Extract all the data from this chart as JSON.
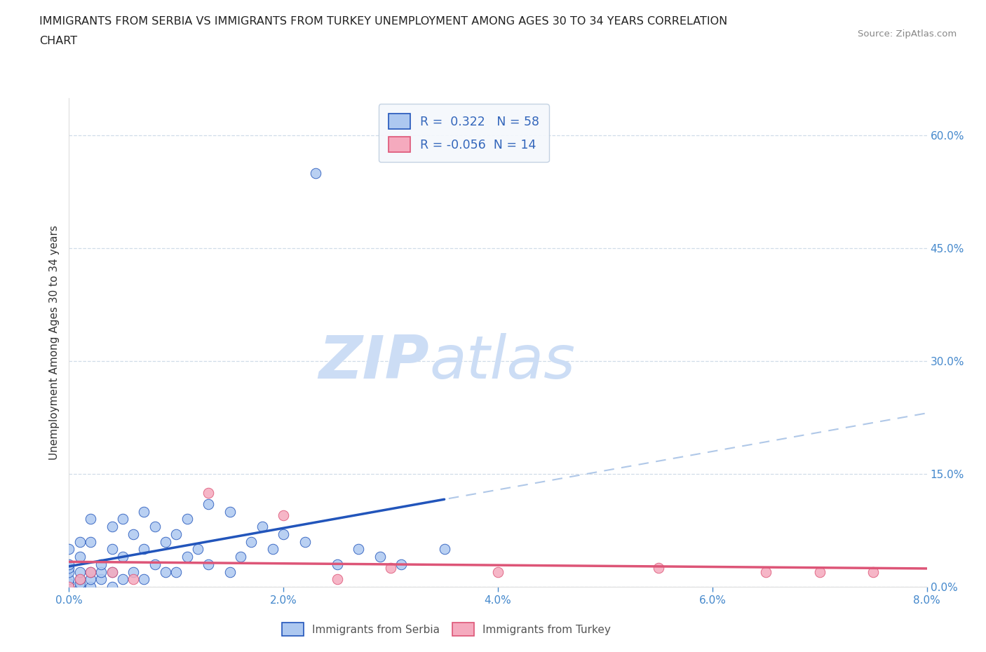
{
  "title_line1": "IMMIGRANTS FROM SERBIA VS IMMIGRANTS FROM TURKEY UNEMPLOYMENT AMONG AGES 30 TO 34 YEARS CORRELATION",
  "title_line2": "CHART",
  "source": "Source: ZipAtlas.com",
  "ylabel": "Unemployment Among Ages 30 to 34 years",
  "serbia_R": 0.322,
  "serbia_N": 58,
  "turkey_R": -0.056,
  "turkey_N": 14,
  "serbia_color": "#adc8f0",
  "turkey_color": "#f5aabe",
  "serbia_line_color": "#2255bb",
  "turkey_line_color": "#dd5577",
  "dashed_line_color": "#b0c8e8",
  "axis_tick_color": "#4488cc",
  "grid_color": "#d0dce8",
  "background_color": "#ffffff",
  "xlim": [
    0.0,
    0.08
  ],
  "ylim": [
    0.0,
    0.65
  ],
  "yticks": [
    0.0,
    0.15,
    0.3,
    0.45,
    0.6
  ],
  "xticks": [
    0.0,
    0.02,
    0.04,
    0.06,
    0.08
  ],
  "serbia_x": [
    0.0,
    0.0,
    0.0,
    0.0,
    0.0,
    0.0,
    0.0,
    0.001,
    0.001,
    0.001,
    0.001,
    0.001,
    0.001,
    0.002,
    0.002,
    0.002,
    0.002,
    0.002,
    0.003,
    0.003,
    0.003,
    0.004,
    0.004,
    0.004,
    0.004,
    0.005,
    0.005,
    0.005,
    0.006,
    0.006,
    0.007,
    0.007,
    0.007,
    0.008,
    0.008,
    0.009,
    0.009,
    0.01,
    0.01,
    0.011,
    0.011,
    0.012,
    0.013,
    0.013,
    0.015,
    0.015,
    0.016,
    0.017,
    0.018,
    0.019,
    0.02,
    0.022,
    0.023,
    0.025,
    0.027,
    0.029,
    0.031,
    0.035
  ],
  "serbia_y": [
    0.0,
    0.005,
    0.01,
    0.02,
    0.025,
    0.03,
    0.05,
    0.0,
    0.005,
    0.01,
    0.02,
    0.04,
    0.06,
    0.0,
    0.01,
    0.02,
    0.06,
    0.09,
    0.01,
    0.02,
    0.03,
    0.0,
    0.02,
    0.05,
    0.08,
    0.01,
    0.04,
    0.09,
    0.02,
    0.07,
    0.01,
    0.05,
    0.1,
    0.03,
    0.08,
    0.02,
    0.06,
    0.02,
    0.07,
    0.04,
    0.09,
    0.05,
    0.03,
    0.11,
    0.02,
    0.1,
    0.04,
    0.06,
    0.08,
    0.05,
    0.07,
    0.06,
    0.55,
    0.03,
    0.05,
    0.04,
    0.03,
    0.05
  ],
  "turkey_x": [
    0.0,
    0.001,
    0.002,
    0.004,
    0.006,
    0.013,
    0.02,
    0.025,
    0.03,
    0.04,
    0.055,
    0.065,
    0.07,
    0.075
  ],
  "turkey_y": [
    0.0,
    0.01,
    0.02,
    0.02,
    0.01,
    0.125,
    0.095,
    0.01,
    0.025,
    0.02,
    0.025,
    0.02,
    0.02,
    0.02
  ],
  "watermark_zip": "ZIP",
  "watermark_atlas": "atlas",
  "watermark_color": "#ccddf5",
  "legend_color": "#3366bb",
  "legend_bg": "#f5f8fc",
  "legend_edge": "#c0cfe0"
}
